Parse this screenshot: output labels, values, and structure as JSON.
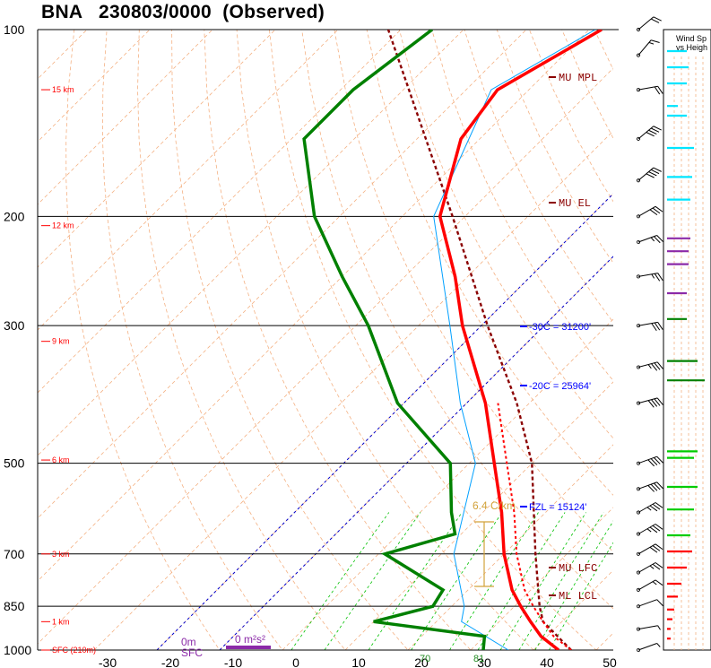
{
  "title": "BNA   230803/0000  (Observed)",
  "colors": {
    "temperature": "#ff0000",
    "dewpoint": "#008000",
    "wetbulb": "#00a0ff",
    "parcel": "#8b0000",
    "dry_adiabat": "#f4b183",
    "mixing_ratio": "#00c000",
    "isotherm_highlight": "#0000cc",
    "height_label": "#ff0000",
    "lapse_rate": "#d2a23a"
  },
  "hodo_title_lines": [
    "Wind Sp",
    "vs Heigh"
  ],
  "chart_data": {
    "type": "skewt",
    "title": "BNA   230803/0000  (Observed)",
    "pressure_levels": [
      100,
      200,
      300,
      500,
      700,
      850,
      1000
    ],
    "height_labels": [
      "15 km",
      "12 km",
      "9 km",
      "6 km",
      "3 km",
      "1 km",
      "SFC (210m)"
    ],
    "height_label_pressures": [
      125,
      207,
      318,
      494,
      700,
      900,
      1000
    ],
    "x_tick_labels": [
      "-30",
      "-20",
      "-10",
      "0",
      "10",
      "20",
      "30",
      "40",
      "50"
    ],
    "annotations": {
      "mu_mpl": "MU MPL",
      "mu_el": "MU EL",
      "mu_lfc": "MU LFC",
      "ml_lcl": "ML LCL",
      "minus30": "-30C = 31200'",
      "minus20": "-20C = 25964'",
      "fzl": "FZL = 15124'",
      "lapse": "6.4 C/km",
      "sfc_0m": "0m",
      "sfc_label": "SFC",
      "storm_motion": "0 m²s²",
      "mix_70": "70",
      "mix_81": "81"
    },
    "temperature": [
      {
        "p": 1000,
        "t": 34
      },
      {
        "p": 950,
        "t": 29
      },
      {
        "p": 900,
        "t": 25
      },
      {
        "p": 850,
        "t": 21
      },
      {
        "p": 800,
        "t": 17
      },
      {
        "p": 700,
        "t": 10
      },
      {
        "p": 600,
        "t": 3
      },
      {
        "p": 500,
        "t": -6
      },
      {
        "p": 400,
        "t": -17
      },
      {
        "p": 300,
        "t": -33
      },
      {
        "p": 250,
        "t": -42
      },
      {
        "p": 200,
        "t": -54
      },
      {
        "p": 150,
        "t": -63
      },
      {
        "p": 125,
        "t": -65
      },
      {
        "p": 100,
        "t": -58
      }
    ],
    "dewpoint": [
      {
        "p": 1000,
        "t": 22
      },
      {
        "p": 950,
        "t": 20
      },
      {
        "p": 900,
        "t": 0
      },
      {
        "p": 850,
        "t": 7
      },
      {
        "p": 800,
        "t": 6
      },
      {
        "p": 700,
        "t": -9
      },
      {
        "p": 650,
        "t": -1
      },
      {
        "p": 600,
        "t": -5
      },
      {
        "p": 500,
        "t": -13
      },
      {
        "p": 400,
        "t": -31
      },
      {
        "p": 300,
        "t": -48
      },
      {
        "p": 250,
        "t": -60
      },
      {
        "p": 200,
        "t": -74
      },
      {
        "p": 150,
        "t": -88
      },
      {
        "p": 125,
        "t": -88
      },
      {
        "p": 100,
        "t": -85
      }
    ],
    "wetbulb": [
      {
        "p": 1000,
        "t": 26
      },
      {
        "p": 900,
        "t": 14
      },
      {
        "p": 850,
        "t": 12
      },
      {
        "p": 700,
        "t": 2
      },
      {
        "p": 500,
        "t": -9
      },
      {
        "p": 400,
        "t": -21
      },
      {
        "p": 300,
        "t": -35
      },
      {
        "p": 200,
        "t": -55
      },
      {
        "p": 125,
        "t": -66
      },
      {
        "p": 100,
        "t": -59
      }
    ],
    "parcel": [
      {
        "p": 1000,
        "t": 36
      },
      {
        "p": 900,
        "t": 27
      },
      {
        "p": 850,
        "t": 24
      },
      {
        "p": 700,
        "t": 15
      },
      {
        "p": 500,
        "t": 0
      },
      {
        "p": 400,
        "t": -12
      },
      {
        "p": 300,
        "t": -29
      },
      {
        "p": 200,
        "t": -52
      },
      {
        "p": 100,
        "t": -92
      }
    ],
    "mixing_ratio_lines_gkg": [
      2,
      3,
      5,
      8,
      12,
      16,
      20,
      24,
      28,
      32
    ],
    "wind_barbs": [
      {
        "p": 1000,
        "dir": 250,
        "kt": 5
      },
      {
        "p": 925,
        "dir": 260,
        "kt": 5
      },
      {
        "p": 850,
        "dir": 250,
        "kt": 10
      },
      {
        "p": 800,
        "dir": 240,
        "kt": 15
      },
      {
        "p": 750,
        "dir": 240,
        "kt": 25
      },
      {
        "p": 700,
        "dir": 240,
        "kt": 30
      },
      {
        "p": 650,
        "dir": 240,
        "kt": 35
      },
      {
        "p": 600,
        "dir": 240,
        "kt": 35
      },
      {
        "p": 550,
        "dir": 250,
        "kt": 40
      },
      {
        "p": 500,
        "dir": 250,
        "kt": 40
      },
      {
        "p": 400,
        "dir": 255,
        "kt": 40
      },
      {
        "p": 350,
        "dir": 255,
        "kt": 35
      },
      {
        "p": 300,
        "dir": 260,
        "kt": 30
      },
      {
        "p": 250,
        "dir": 260,
        "kt": 25
      },
      {
        "p": 220,
        "dir": 250,
        "kt": 25
      },
      {
        "p": 200,
        "dir": 240,
        "kt": 30
      },
      {
        "p": 175,
        "dir": 230,
        "kt": 40
      },
      {
        "p": 150,
        "dir": 230,
        "kt": 40
      },
      {
        "p": 125,
        "dir": 260,
        "kt": 20
      },
      {
        "p": 110,
        "dir": 220,
        "kt": 15
      },
      {
        "p": 100,
        "dir": 230,
        "kt": 20
      }
    ],
    "wind_profile_bars": [
      {
        "h": 0.3,
        "len": 4,
        "color": "#ff0000"
      },
      {
        "h": 0.6,
        "len": 4,
        "color": "#ff0000"
      },
      {
        "h": 0.9,
        "len": 6,
        "color": "#ff0000"
      },
      {
        "h": 1.2,
        "len": 8,
        "color": "#ff0000"
      },
      {
        "h": 1.6,
        "len": 12,
        "color": "#ff0000"
      },
      {
        "h": 2.0,
        "len": 16,
        "color": "#ff0000"
      },
      {
        "h": 2.5,
        "len": 22,
        "color": "#ff0000"
      },
      {
        "h": 3.0,
        "len": 28,
        "color": "#ff0000"
      },
      {
        "h": 3.5,
        "len": 26,
        "color": "#00cc00"
      },
      {
        "h": 4.3,
        "len": 30,
        "color": "#00cc00"
      },
      {
        "h": 5.0,
        "len": 34,
        "color": "#00cc00"
      },
      {
        "h": 5.9,
        "len": 30,
        "color": "#00cc00"
      },
      {
        "h": 6.1,
        "len": 34,
        "color": "#00cc00"
      },
      {
        "h": 8.3,
        "len": 42,
        "color": "#008000"
      },
      {
        "h": 8.9,
        "len": 34,
        "color": "#008000"
      },
      {
        "h": 10.2,
        "len": 22,
        "color": "#008000"
      },
      {
        "h": 11.0,
        "len": 22,
        "color": "#8b2aa8"
      },
      {
        "h": 11.9,
        "len": 24,
        "color": "#8b2aa8"
      },
      {
        "h": 12.3,
        "len": 24,
        "color": "#8b2aa8"
      },
      {
        "h": 12.7,
        "len": 26,
        "color": "#8b2aa8"
      },
      {
        "h": 13.9,
        "len": 26,
        "color": "#00e5ff"
      },
      {
        "h": 14.6,
        "len": 28,
        "color": "#00e5ff"
      },
      {
        "h": 15.5,
        "len": 30,
        "color": "#00e5ff"
      },
      {
        "h": 16.5,
        "len": 22,
        "color": "#00e5ff"
      },
      {
        "h": 16.8,
        "len": 12,
        "color": "#00e5ff"
      },
      {
        "h": 17.5,
        "len": 22,
        "color": "#00e5ff"
      },
      {
        "h": 18.0,
        "len": 24,
        "color": "#00e5ff"
      },
      {
        "h": 18.5,
        "len": 22,
        "color": "#00e5ff"
      }
    ]
  }
}
